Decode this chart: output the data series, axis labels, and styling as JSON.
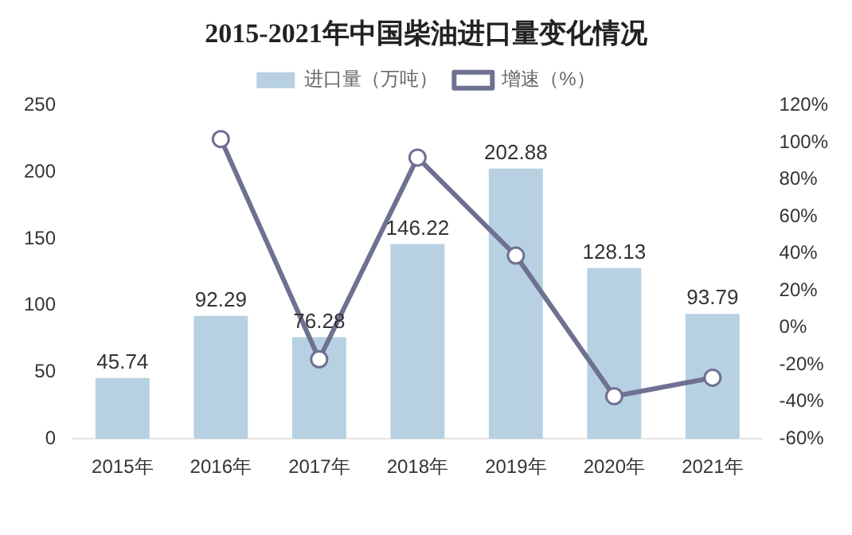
{
  "chart_data": {
    "type": "bar",
    "title": "2015-2021年中国柴油进口量变化情况",
    "categories": [
      "2015年",
      "2016年",
      "2017年",
      "2018年",
      "2019年",
      "2020年",
      "2021年"
    ],
    "series": [
      {
        "name": "进口量（万吨）",
        "color": "#b7d1e2",
        "values": [
          45.74,
          92.29,
          76.28,
          146.22,
          202.88,
          128.13,
          93.79
        ],
        "value_labels": [
          "45.74",
          "92.29",
          "76.28",
          "146.22",
          "202.88",
          "128.13",
          "93.79"
        ]
      },
      {
        "name": "增速（%）",
        "type": "line",
        "axis": "y2",
        "color": "#6e7191",
        "marker": "circle",
        "values": [
          null,
          102,
          -17,
          92,
          39,
          -37,
          -27
        ]
      }
    ],
    "ylim": [
      0,
      250
    ],
    "yticks": [
      0,
      50,
      100,
      150,
      200,
      250
    ],
    "y2lim": [
      -60,
      120
    ],
    "y2ticks": [
      {
        "value": -60,
        "label": "-60%"
      },
      {
        "value": -40,
        "label": "-40%"
      },
      {
        "value": -20,
        "label": "-20%"
      },
      {
        "value": 0,
        "label": "0%"
      },
      {
        "value": 20,
        "label": "20%"
      },
      {
        "value": 40,
        "label": "40%"
      },
      {
        "value": 60,
        "label": "60%"
      },
      {
        "value": 80,
        "label": "80%"
      },
      {
        "value": 100,
        "label": "100%"
      },
      {
        "value": 120,
        "label": "120%"
      }
    ],
    "legend": "top"
  }
}
